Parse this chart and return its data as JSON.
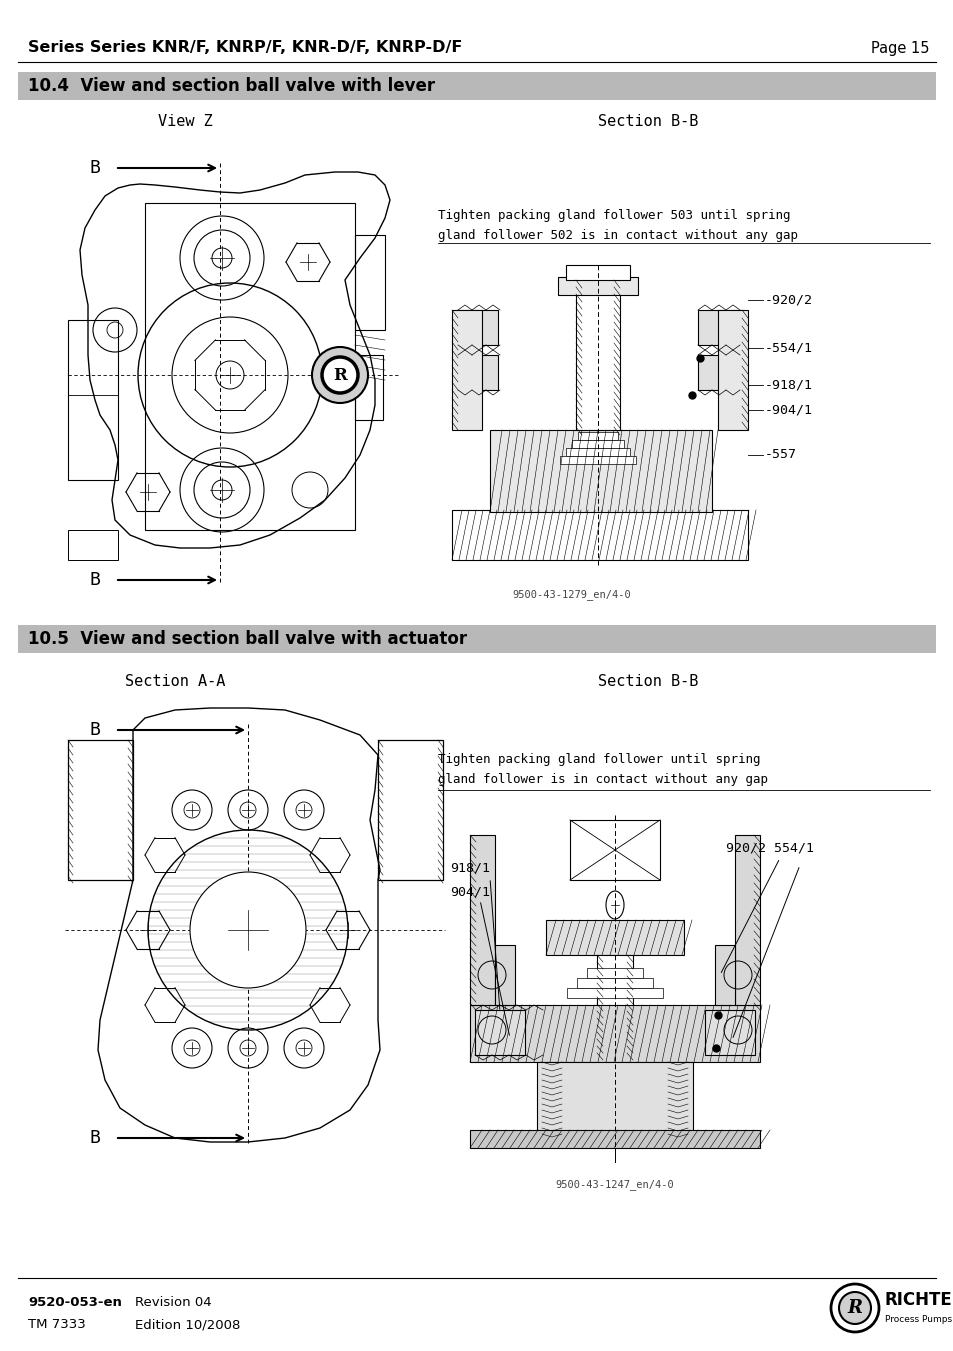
{
  "page_title": "Series Series KNR/F, KNRP/F, KNR-D/F, KNRP-D/F",
  "page_number": "Page 15",
  "section1_title": "10.4  View and section ball valve with lever",
  "section2_title": "10.5  View and section ball valve with actuator",
  "view_z_label": "View Z",
  "section_bb_label1": "Section B-B",
  "section_aa_label": "Section A-A",
  "section_bb_label2": "Section B-B",
  "text1_line1": "Tighten packing gland follower 503 until spring",
  "text1_line2": "gland follower 502 is in contact without any gap",
  "text2_line1": "Tighten packing gland follower until spring",
  "text2_line2": "gland follower is in contact without any gap",
  "labels1": [
    "920/2",
    "554/1",
    "918/1",
    "904/1",
    "557"
  ],
  "labels2_left1": "918/1",
  "labels2_left2": "904/1",
  "labels2_right": "920/2 554/1",
  "drawing1_ref": "9500-43-1279_en/4-0",
  "drawing2_ref": "9500-43-1247_en/4-0",
  "footer_code": "9520-053-en",
  "footer_tm": "TM 7333",
  "footer_rev": "Revision 04",
  "footer_ed": "Edition 10/2008",
  "bg_color": "#ffffff",
  "section_bar_color": "#b8b8b8",
  "text_color": "#000000",
  "hatch_color": "#888888",
  "fig_width": 9.54,
  "fig_height": 13.51,
  "dpi": 100
}
